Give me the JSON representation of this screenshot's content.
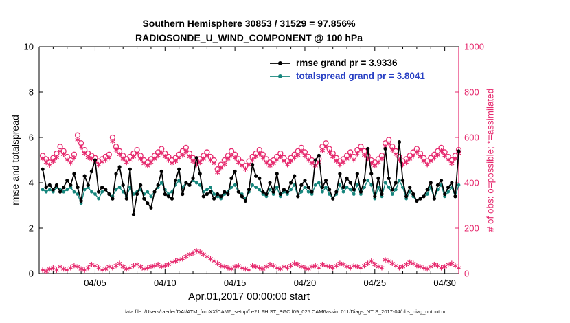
{
  "title": {
    "line1": "Southern Hemisphere 30853 / 31529 = 97.856%",
    "line2": "RADIOSONDE_U_WIND_COMPONENT @ 100 hPa"
  },
  "footer": {
    "data_file": "data file: /Users/raeder/DAI/ATM_forcXX/CAM6_setup/f.e21.FHIST_BGC.f09_025.CAM6assim.011/Diags_NTrS_2017-04/obs_diag_output.nc"
  },
  "chart_data": {
    "type": "line",
    "title": "Southern Hemisphere 30853 / 31529 = 97.856% | RADIOSONDE_U_WIND_COMPONENT @ 100 hPa",
    "xlabel": "Apr.01,2017 00:00:00 start",
    "ylabel_left": "rmse and totalspread",
    "ylabel_right": "# of obs: o=possible; *=assimilated",
    "ylim_left": [
      0,
      10
    ],
    "ylim_right": [
      0,
      1000
    ],
    "yticks_left": [
      0,
      2,
      4,
      6,
      8,
      10
    ],
    "yticks_right": [
      0,
      200,
      400,
      600,
      800,
      1000
    ],
    "xlim_days": [
      0,
      30
    ],
    "xticks": [
      {
        "day": 4,
        "label": "04/05"
      },
      {
        "day": 9,
        "label": "04/10"
      },
      {
        "day": 14,
        "label": "04/15"
      },
      {
        "day": 19,
        "label": "04/20"
      },
      {
        "day": 24,
        "label": "04/25"
      },
      {
        "day": 29,
        "label": "04/30"
      }
    ],
    "grid": false,
    "legend_position": "top-center-inside",
    "rmse_grand": 3.9336,
    "totalspread_grand": 3.8041,
    "colors": {
      "rmse": "#000000",
      "totalspread": "#17867d",
      "obs": "#e62a6e",
      "legend_spread_text": "#2840c4"
    },
    "legend": [
      {
        "label": "rmse grand pr = 3.9336",
        "color": "#000000",
        "text_color": "#000000"
      },
      {
        "label": "totalspread grand pr = 3.8041",
        "color": "#17867d",
        "text_color": "#2840c4"
      }
    ],
    "x": {
      "start_day": 0.25,
      "step_days": 0.25,
      "n": 120
    },
    "series": [
      {
        "name": "rmse",
        "axis": "left",
        "color": "#000000",
        "marker": "dot",
        "values": [
          4.6,
          3.8,
          3.9,
          3.7,
          3.9,
          3.6,
          3.8,
          4.1,
          3.9,
          4.4,
          3.8,
          3.2,
          4.3,
          3.9,
          4.5,
          5.0,
          3.6,
          3.8,
          3.7,
          3.5,
          3.3,
          4.4,
          4.7,
          3.9,
          3.3,
          4.6,
          2.6,
          3.5,
          3.9,
          3.3,
          3.1,
          2.9,
          3.6,
          3.9,
          4.5,
          3.5,
          3.4,
          3.3,
          4.1,
          4.6,
          3.5,
          4.0,
          3.9,
          4.2,
          5.1,
          4.4,
          3.4,
          3.5,
          3.6,
          3.3,
          3.5,
          3.4,
          3.6,
          3.5,
          4.2,
          4.5,
          3.6,
          3.4,
          3.2,
          3.7,
          4.8,
          4.3,
          4.2,
          3.6,
          3.5,
          4.0,
          3.6,
          4.4,
          3.5,
          3.7,
          3.6,
          4.0,
          4.3,
          3.4,
          3.9,
          4.1,
          3.8,
          3.6,
          5.0,
          5.2,
          3.8,
          4.1,
          3.7,
          3.3,
          3.6,
          4.4,
          3.8,
          4.2,
          4.0,
          3.7,
          4.4,
          3.6,
          4.1,
          5.5,
          4.4,
          3.4,
          4.2,
          3.5,
          5.5,
          4.2,
          3.7,
          4.0,
          5.8,
          4.1,
          3.4,
          3.8,
          3.5,
          3.2,
          3.3,
          3.4,
          3.7,
          4.0,
          3.3,
          3.9,
          4.1,
          3.5,
          3.8,
          4.0,
          3.4,
          5.4
        ]
      },
      {
        "name": "totalspread",
        "axis": "left",
        "color": "#17867d",
        "marker": "dot",
        "values": [
          3.7,
          3.6,
          3.7,
          3.6,
          3.8,
          3.7,
          3.6,
          3.7,
          3.8,
          3.6,
          3.5,
          3.1,
          3.7,
          3.8,
          3.6,
          3.5,
          3.3,
          3.6,
          3.7,
          3.5,
          3.4,
          3.7,
          3.8,
          3.6,
          3.4,
          3.8,
          3.5,
          3.6,
          3.7,
          3.5,
          3.6,
          3.4,
          3.6,
          3.8,
          4.0,
          3.7,
          3.5,
          3.6,
          3.9,
          4.1,
          3.8,
          4.0,
          3.9,
          4.1,
          4.0,
          3.9,
          3.6,
          3.7,
          3.8,
          3.5,
          3.4,
          3.3,
          3.5,
          3.6,
          3.8,
          3.9,
          3.6,
          3.5,
          3.3,
          3.6,
          3.9,
          3.8,
          3.7,
          3.5,
          3.4,
          3.7,
          3.5,
          3.8,
          3.4,
          3.6,
          3.5,
          3.7,
          3.9,
          3.4,
          3.6,
          3.8,
          3.6,
          3.5,
          3.9,
          4.0,
          3.6,
          3.8,
          3.5,
          3.3,
          3.5,
          3.9,
          3.6,
          3.8,
          3.7,
          3.5,
          3.9,
          3.5,
          3.8,
          4.1,
          3.9,
          3.3,
          3.8,
          3.4,
          4.0,
          3.8,
          3.5,
          3.7,
          4.1,
          3.8,
          3.3,
          3.6,
          3.4,
          3.2,
          3.3,
          3.4,
          3.5,
          3.8,
          3.3,
          3.7,
          3.9,
          3.4,
          3.6,
          3.8,
          3.4,
          3.9
        ]
      },
      {
        "name": "obs_possible",
        "axis": "right",
        "color": "#e62a6e",
        "marker": "circle",
        "values": [
          520,
          505,
          490,
          510,
          530,
          560,
          540,
          515,
          500,
          525,
          610,
          575,
          545,
          530,
          520,
          510,
          495,
          505,
          515,
          525,
          600,
          560,
          540,
          520,
          505,
          515,
          530,
          545,
          520,
          500,
          490,
          505,
          520,
          535,
          550,
          530,
          515,
          500,
          510,
          525,
          540,
          555,
          530,
          510,
          495,
          505,
          520,
          535,
          515,
          500,
          460,
          480,
          500,
          520,
          540,
          525,
          505,
          490,
          475,
          495,
          515,
          530,
          545,
          525,
          505,
          490,
          500,
          515,
          530,
          510,
          495,
          510,
          525,
          540,
          555,
          535,
          515,
          500,
          490,
          505,
          560,
          575,
          550,
          530,
          510,
          495,
          505,
          520,
          535,
          515,
          545,
          560,
          540,
          520,
          500,
          490,
          505,
          520,
          575,
          590,
          560,
          540,
          515,
          495,
          505,
          520,
          535,
          550,
          530,
          510,
          495,
          510,
          525,
          540,
          555,
          535,
          515,
          500,
          520,
          545
        ]
      },
      {
        "name": "obs_assimilated",
        "axis": "right",
        "color": "#e62a6e",
        "marker": "asterisk",
        "values": [
          505,
          490,
          478,
          495,
          512,
          540,
          525,
          500,
          488,
          510,
          590,
          558,
          530,
          512,
          505,
          495,
          480,
          492,
          500,
          510,
          582,
          545,
          525,
          505,
          490,
          500,
          515,
          530,
          505,
          485,
          475,
          490,
          505,
          520,
          532,
          515,
          500,
          485,
          495,
          510,
          522,
          538,
          515,
          495,
          480,
          490,
          505,
          520,
          500,
          485,
          445,
          465,
          482,
          505,
          522,
          510,
          490,
          475,
          460,
          480,
          500,
          515,
          528,
          510,
          488,
          475,
          485,
          500,
          515,
          495,
          480,
          495,
          510,
          522,
          538,
          520,
          500,
          485,
          475,
          490,
          542,
          558,
          535,
          515,
          495,
          480,
          490,
          505,
          518,
          500,
          528,
          545,
          522,
          505,
          485,
          475,
          490,
          505,
          558,
          572,
          545,
          525,
          500,
          480,
          490,
          505,
          518,
          535,
          515,
          495,
          480,
          495,
          510,
          522,
          540,
          520,
          500,
          485,
          505,
          530
        ]
      },
      {
        "name": "obs_low_asterisks",
        "axis": "right",
        "color": "#e62a6e",
        "marker": "asterisk",
        "values": [
          15,
          10,
          20,
          25,
          15,
          30,
          20,
          15,
          25,
          35,
          30,
          20,
          15,
          25,
          40,
          35,
          25,
          15,
          20,
          30,
          25,
          35,
          45,
          30,
          20,
          25,
          35,
          40,
          30,
          20,
          25,
          30,
          35,
          40,
          30,
          35,
          40,
          50,
          55,
          60,
          65,
          75,
          85,
          90,
          100,
          95,
          85,
          75,
          65,
          55,
          45,
          35,
          30,
          25,
          20,
          30,
          35,
          25,
          20,
          15,
          35,
          30,
          25,
          20,
          30,
          40,
          35,
          25,
          20,
          30,
          25,
          35,
          45,
          40,
          30,
          25,
          20,
          30,
          35,
          25,
          40,
          35,
          30,
          25,
          35,
          45,
          40,
          30,
          25,
          35,
          30,
          25,
          35,
          45,
          55,
          40,
          30,
          25,
          60,
          55,
          45,
          35,
          25,
          30,
          40,
          50,
          45,
          35,
          30,
          25,
          20,
          30,
          40,
          35,
          25,
          30,
          40,
          45,
          35,
          25
        ]
      }
    ]
  }
}
